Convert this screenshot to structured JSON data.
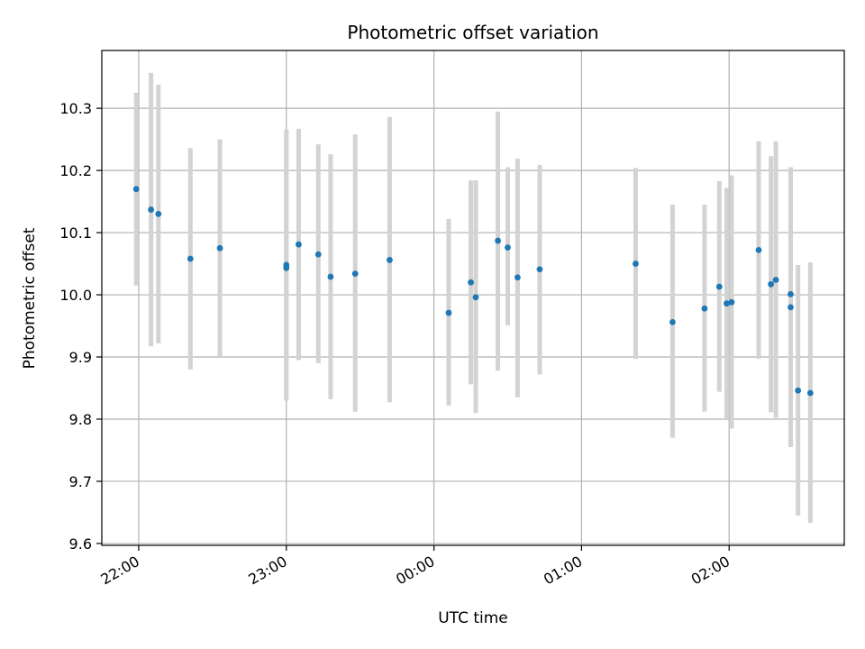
{
  "chart_data": {
    "type": "scatter",
    "title": "Photometric offset variation",
    "xlabel": "UTC time",
    "ylabel": "Photometric offset",
    "grid": true,
    "colors": {
      "point": "#1f77b4",
      "errorbar": "#d3d3d3",
      "grid": "#b0b0b0",
      "axes": "#000000"
    },
    "xlim": [
      -0.25,
      4.78
    ],
    "ylim": [
      9.597,
      10.393
    ],
    "x_ticks": [
      0,
      1,
      2,
      3,
      4
    ],
    "x_tick_labels": [
      "22:00",
      "23:00",
      "00:00",
      "01:00",
      "02:00"
    ],
    "y_ticks": [
      9.6,
      9.7,
      9.8,
      9.9,
      10.0,
      10.1,
      10.2,
      10.3
    ],
    "y_tick_labels": [
      "9.6",
      "9.7",
      "9.8",
      "9.9",
      "10.0",
      "10.1",
      "10.2",
      "10.3"
    ],
    "points": [
      {
        "t": "21:59",
        "y": 10.17,
        "lo": 10.015,
        "hi": 10.325
      },
      {
        "t": "22:05",
        "y": 10.137,
        "lo": 9.917,
        "hi": 10.357
      },
      {
        "t": "22:08",
        "y": 10.13,
        "lo": 9.922,
        "hi": 10.338
      },
      {
        "t": "22:21",
        "y": 10.058,
        "lo": 9.88,
        "hi": 10.236
      },
      {
        "t": "22:33",
        "y": 10.075,
        "lo": 9.9,
        "hi": 10.25
      },
      {
        "t": "23:00",
        "y": 10.048,
        "lo": 9.83,
        "hi": 10.266
      },
      {
        "t": "23:00",
        "y": 10.043,
        "lo": 9.83,
        "hi": 10.266
      },
      {
        "t": "23:05",
        "y": 10.081,
        "lo": 9.895,
        "hi": 10.267
      },
      {
        "t": "23:13",
        "y": 10.065,
        "lo": 9.89,
        "hi": 10.242
      },
      {
        "t": "23:18",
        "y": 10.029,
        "lo": 9.832,
        "hi": 10.226
      },
      {
        "t": "23:28",
        "y": 10.034,
        "lo": 9.812,
        "hi": 10.258
      },
      {
        "t": "23:42",
        "y": 10.056,
        "lo": 9.827,
        "hi": 10.286
      },
      {
        "t": "00:06",
        "y": 9.971,
        "lo": 9.822,
        "hi": 10.122
      },
      {
        "t": "00:15",
        "y": 10.02,
        "lo": 9.856,
        "hi": 10.184
      },
      {
        "t": "00:17",
        "y": 9.996,
        "lo": 9.81,
        "hi": 10.184
      },
      {
        "t": "00:26",
        "y": 10.087,
        "lo": 9.878,
        "hi": 10.295
      },
      {
        "t": "00:30",
        "y": 10.076,
        "lo": 9.951,
        "hi": 10.205
      },
      {
        "t": "00:34",
        "y": 10.028,
        "lo": 9.835,
        "hi": 10.219
      },
      {
        "t": "00:43",
        "y": 10.041,
        "lo": 9.872,
        "hi": 10.209
      },
      {
        "t": "01:22",
        "y": 10.05,
        "lo": 9.897,
        "hi": 10.204
      },
      {
        "t": "01:37",
        "y": 9.956,
        "lo": 9.77,
        "hi": 10.145
      },
      {
        "t": "01:50",
        "y": 9.978,
        "lo": 9.812,
        "hi": 10.145
      },
      {
        "t": "01:56",
        "y": 10.013,
        "lo": 9.844,
        "hi": 10.183
      },
      {
        "t": "01:59",
        "y": 9.986,
        "lo": 9.8,
        "hi": 10.172
      },
      {
        "t": "02:01",
        "y": 9.988,
        "lo": 9.785,
        "hi": 10.192
      },
      {
        "t": "02:12",
        "y": 10.072,
        "lo": 9.897,
        "hi": 10.247
      },
      {
        "t": "02:17",
        "y": 10.017,
        "lo": 9.811,
        "hi": 10.223
      },
      {
        "t": "02:19",
        "y": 10.024,
        "lo": 9.802,
        "hi": 10.247
      },
      {
        "t": "02:25",
        "y": 10.001,
        "lo": 9.755,
        "hi": 10.205
      },
      {
        "t": "02:25",
        "y": 9.98,
        "lo": 9.755,
        "hi": 10.205
      },
      {
        "t": "02:28",
        "y": 9.846,
        "lo": 9.645,
        "hi": 10.048
      },
      {
        "t": "02:33",
        "y": 9.842,
        "lo": 9.633,
        "hi": 10.052
      }
    ]
  }
}
